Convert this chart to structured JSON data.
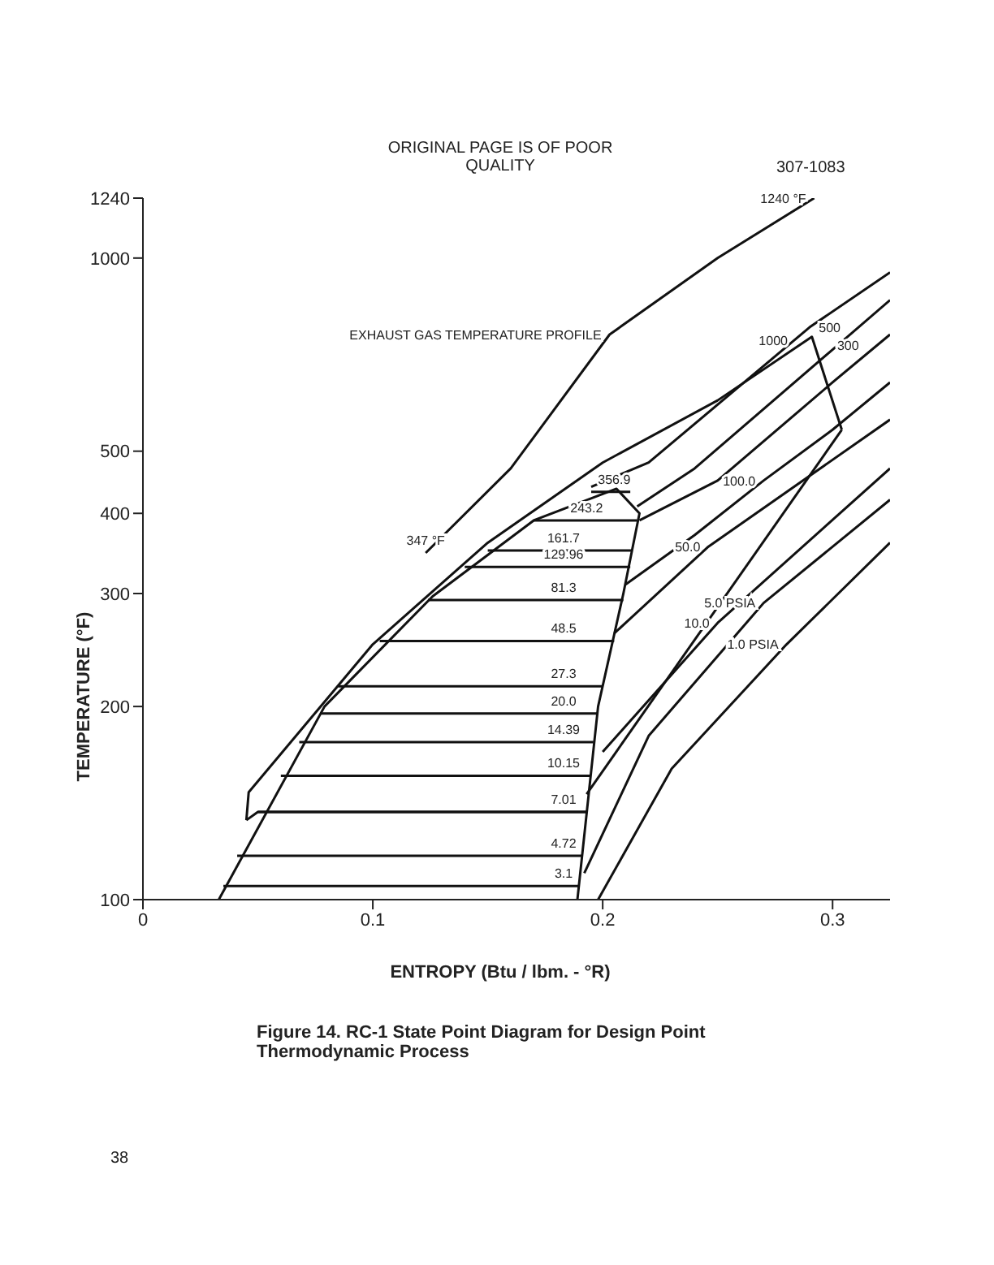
{
  "chart_data": {
    "type": "line",
    "title": "Figure 14.  RC-1 State Point Diagram for Design Point Thermodynamic Process",
    "xlabel": "ENTROPY (Btu / lbm. - °R)",
    "ylabel": "TEMPERATURE (°F)",
    "xlim": [
      0,
      0.325
    ],
    "xticks": [
      0,
      0.1,
      0.2,
      0.3
    ],
    "ylim": [
      100,
      1240
    ],
    "yticks": [
      100,
      200,
      300,
      400,
      500,
      1000,
      1240
    ],
    "log": "y",
    "grid": false,
    "legend": false,
    "marker": "none",
    "line_style": "solid",
    "series": [
      {
        "color": "#111111",
        "x": [
          0.123,
          0.16,
          0.203,
          0.25,
          0.292
        ],
        "values": [
          347,
          470,
          760,
          1000,
          1240
        ]
      },
      {
        "color": "#111111",
        "x": [
          0.033,
          0.079,
          0.126,
          0.17,
          0.206,
          0.216,
          0.209,
          0.198,
          0.189
        ],
        "values": [
          100,
          200,
          297,
          390,
          437,
          400,
          300,
          200,
          100
        ]
      },
      {
        "color": "#111111",
        "x": [
          0.045,
          0.046,
          0.1,
          0.15,
          0.2,
          0.25,
          0.291,
          0.304
        ],
        "values": [
          133,
          147,
          250,
          360,
          480,
          600,
          754,
          540
        ]
      },
      {
        "color": "#111111",
        "x": [
          0.193,
          0.304
        ],
        "values": [
          146,
          540
        ]
      },
      {
        "color": "#111111",
        "x": [
          0.045,
          0.05,
          0.193
        ],
        "values": [
          133,
          137,
          137
        ]
      },
      {
        "color": "#111111",
        "x": [
          0.195,
          0.212
        ],
        "values": [
          432,
          432
        ]
      },
      {
        "color": "#111111",
        "x": [
          0.17,
          0.215
        ],
        "values": [
          390,
          390
        ]
      },
      {
        "color": "#111111",
        "x": [
          0.15,
          0.213
        ],
        "values": [
          350,
          350
        ]
      },
      {
        "color": "#111111",
        "x": [
          0.14,
          0.212
        ],
        "values": [
          330,
          330
        ]
      },
      {
        "color": "#111111",
        "x": [
          0.124,
          0.209
        ],
        "values": [
          293,
          293
        ]
      },
      {
        "color": "#111111",
        "x": [
          0.103,
          0.205
        ],
        "values": [
          253,
          253
        ]
      },
      {
        "color": "#111111",
        "x": [
          0.085,
          0.2
        ],
        "values": [
          215,
          215
        ]
      },
      {
        "color": "#111111",
        "x": [
          0.077,
          0.198
        ],
        "values": [
          195,
          195
        ]
      },
      {
        "color": "#111111",
        "x": [
          0.068,
          0.196
        ],
        "values": [
          176,
          176
        ]
      },
      {
        "color": "#111111",
        "x": [
          0.06,
          0.195
        ],
        "values": [
          156,
          156
        ]
      },
      {
        "color": "#111111",
        "x": [
          0.05,
          0.193
        ],
        "values": [
          137,
          137
        ]
      },
      {
        "color": "#111111",
        "x": [
          0.041,
          0.191
        ],
        "values": [
          117,
          117
        ]
      },
      {
        "color": "#111111",
        "x": [
          0.035,
          0.19
        ],
        "values": [
          105,
          105
        ]
      },
      {
        "color": "#111111",
        "x": [
          0.195,
          0.22,
          0.29,
          0.325
        ],
        "values": [
          440,
          480,
          780,
          950
        ]
      },
      {
        "color": "#111111",
        "x": [
          0.215,
          0.24,
          0.3,
          0.325
        ],
        "values": [
          410,
          470,
          720,
          860
        ]
      },
      {
        "color": "#111111",
        "x": [
          0.216,
          0.25,
          0.3,
          0.325
        ],
        "values": [
          390,
          450,
          640,
          760
        ]
      },
      {
        "color": "#111111",
        "x": [
          0.21,
          0.24,
          0.27,
          0.3,
          0.325
        ],
        "values": [
          310,
          370,
          450,
          540,
          640
        ]
      },
      {
        "color": "#111111",
        "x": [
          0.205,
          0.246,
          0.325
        ],
        "values": [
          260,
          355,
          560
        ]
      },
      {
        "color": "#111111",
        "x": [
          0.2,
          0.25,
          0.325
        ],
        "values": [
          170,
          270,
          470
        ]
      },
      {
        "color": "#111111",
        "x": [
          0.192,
          0.22,
          0.27,
          0.325
        ],
        "values": [
          110,
          180,
          290,
          420
        ]
      },
      {
        "color": "#111111",
        "x": [
          0.198,
          0.23,
          0.28,
          0.325
        ],
        "values": [
          100,
          160,
          250,
          360
        ]
      }
    ],
    "annotations": [
      "ORIGINAL PAGE IS OF POOR QUALITY",
      "307-1083",
      "38",
      {
        "text": "EXHAUST GAS TEMPERATURE PROFILE",
        "x": 0.203,
        "y": 760
      },
      {
        "text": "347 °F",
        "x": 0.123,
        "y": 347
      },
      {
        "text": "1240 °F",
        "x": 0.292,
        "y": 1240
      },
      {
        "text": "356.9",
        "x": 0.205,
        "y": 432
      },
      {
        "text": "243.2",
        "x": 0.193,
        "y": 390
      },
      {
        "text": "161.7",
        "x": 0.183,
        "y": 350
      },
      {
        "text": "129.96",
        "x": 0.183,
        "y": 330
      },
      {
        "text": "81.3",
        "x": 0.183,
        "y": 293
      },
      {
        "text": "48.5",
        "x": 0.183,
        "y": 253
      },
      {
        "text": "27.3",
        "x": 0.183,
        "y": 215
      },
      {
        "text": "20.0",
        "x": 0.183,
        "y": 195
      },
      {
        "text": "14.39",
        "x": 0.183,
        "y": 176
      },
      {
        "text": "10.15",
        "x": 0.183,
        "y": 156
      },
      {
        "text": "7.01",
        "x": 0.183,
        "y": 137
      },
      {
        "text": "4.72",
        "x": 0.183,
        "y": 117
      },
      {
        "text": "3.1",
        "x": 0.183,
        "y": 105
      },
      {
        "text": "1000",
        "x": 0.284,
        "y": 745
      },
      {
        "text": "500",
        "x": 0.307,
        "y": 780
      },
      {
        "text": "300",
        "x": 0.315,
        "y": 730
      },
      {
        "text": "100.0",
        "x": 0.27,
        "y": 450
      },
      {
        "text": "50.0",
        "x": 0.246,
        "y": 355
      },
      {
        "text": "10.0",
        "x": 0.25,
        "y": 270
      },
      {
        "text": "5.0 PSIA",
        "x": 0.27,
        "y": 290
      },
      {
        "text": "1.0 PSIA",
        "x": 0.28,
        "y": 250
      }
    ]
  }
}
